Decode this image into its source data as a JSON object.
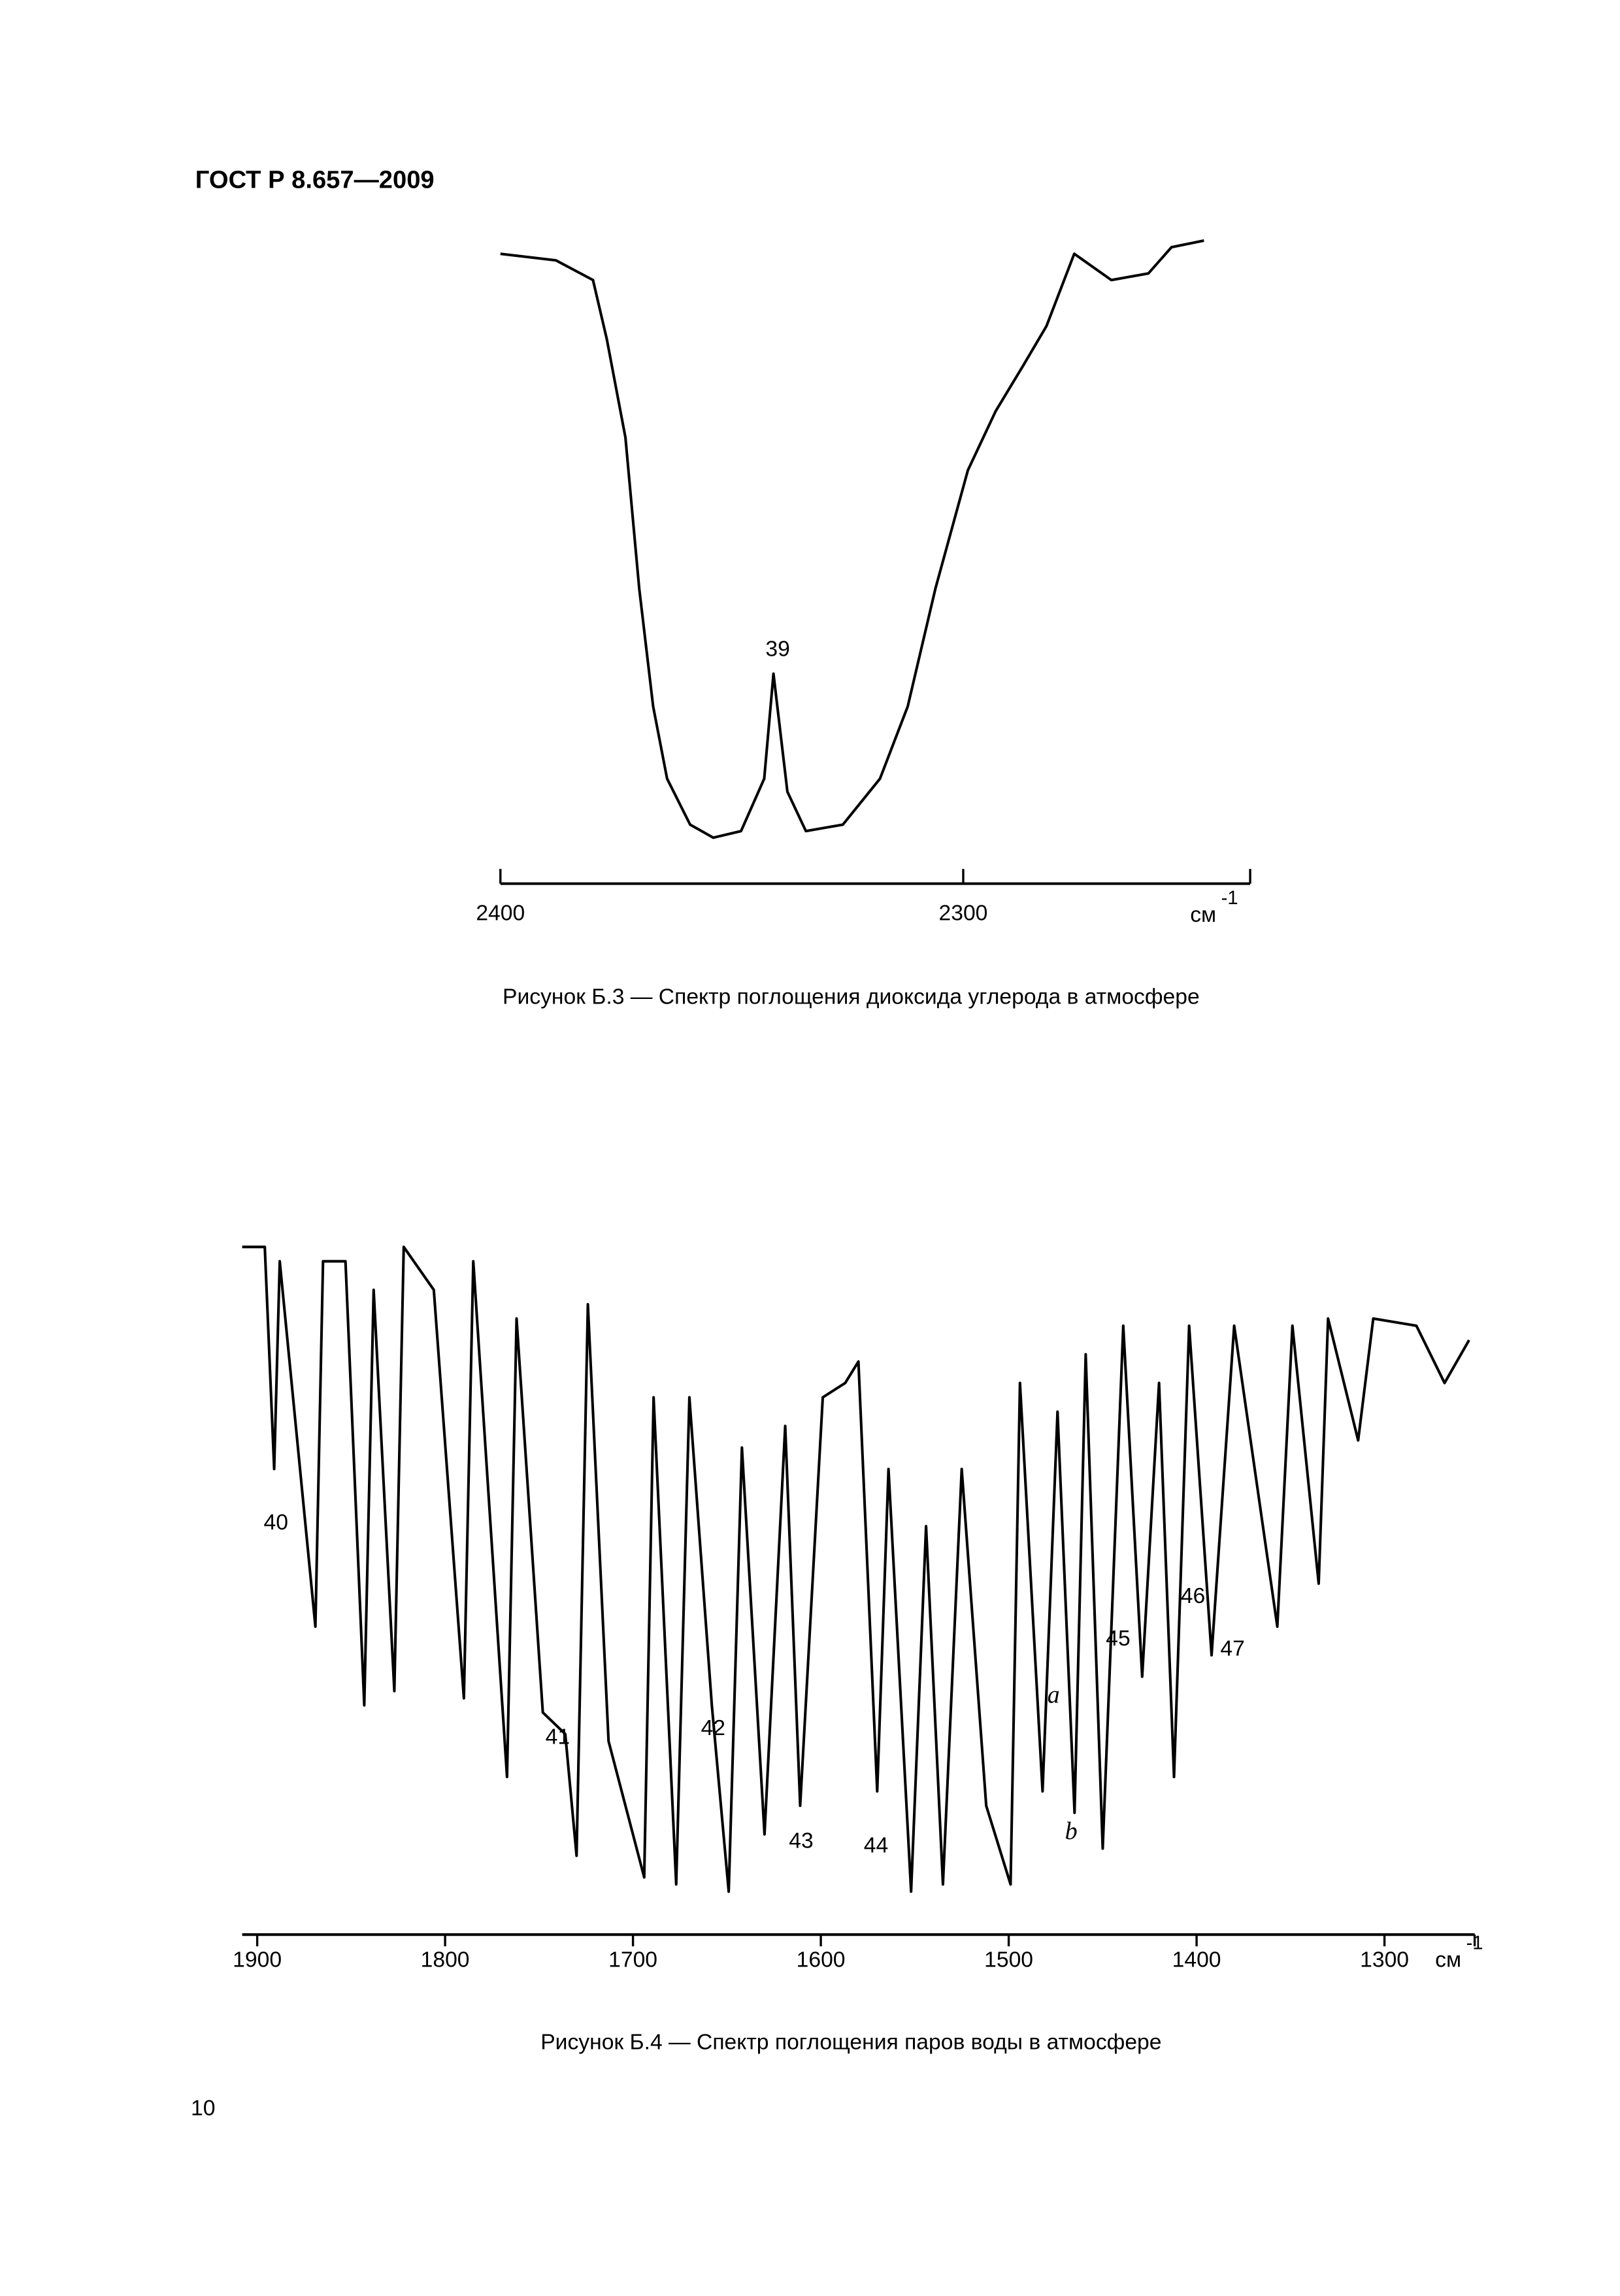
{
  "header": "ГОСТ Р 8.657—2009",
  "page_number": "10",
  "chart_data": [
    {
      "type": "line",
      "caption": "Рисунок Б.3 — Спектр поглощения диоксида углерода в атмосфере",
      "x_unit": "см",
      "x_unit_exponent": "-1",
      "xlim": [
        2400,
        2238
      ],
      "xticks": [
        2400,
        2300
      ],
      "ylim": [
        0,
        100
      ],
      "annotations": [
        {
          "text": "39"
        }
      ],
      "x": [
        2400,
        2388,
        2380,
        2377,
        2373,
        2370,
        2367,
        2364,
        2359,
        2354,
        2348,
        2343,
        2341,
        2338,
        2334,
        2326,
        2318,
        2312,
        2306,
        2299,
        2293,
        2287,
        2282,
        2276,
        2268,
        2260,
        2255,
        2248
      ],
      "values": [
        96,
        95,
        92,
        83,
        68,
        45,
        27,
        16,
        9,
        7,
        8,
        16,
        32,
        14,
        8,
        9,
        16,
        27,
        45,
        63,
        72,
        79,
        85,
        96,
        92,
        93,
        97,
        98
      ],
      "color": "#000000"
    },
    {
      "type": "line",
      "caption": "Рисунок Б.4 — Спектр поглощения паров воды в атмосфере",
      "x_unit": "см",
      "x_unit_exponent": "-1",
      "xlim": [
        1908,
        1252
      ],
      "xticks": [
        1900,
        1800,
        1700,
        1600,
        1500,
        1400,
        1300
      ],
      "ylim": [
        0,
        100
      ],
      "annotations": [
        {
          "text": "40"
        },
        {
          "text": "41"
        },
        {
          "text": "42"
        },
        {
          "text": "43"
        },
        {
          "text": "44"
        },
        {
          "text": "45"
        },
        {
          "text": "46"
        },
        {
          "text": "47"
        },
        {
          "text": "a"
        },
        {
          "text": "b"
        }
      ],
      "x": [
        1908,
        1896,
        1891,
        1888,
        1869,
        1865,
        1853,
        1843,
        1838,
        1827,
        1822,
        1806,
        1790,
        1785,
        1767,
        1762,
        1748,
        1736,
        1730,
        1724,
        1713,
        1694,
        1689,
        1677,
        1670,
        1658,
        1649,
        1642,
        1630,
        1619,
        1611,
        1599,
        1587,
        1580,
        1570,
        1564,
        1552,
        1544,
        1535,
        1525,
        1512,
        1499,
        1494,
        1482,
        1474,
        1465,
        1459,
        1450,
        1439,
        1429,
        1420,
        1412,
        1404,
        1392,
        1380,
        1357,
        1349,
        1335,
        1330,
        1314,
        1306,
        1283,
        1268,
        1255
      ],
      "values": [
        96,
        96,
        65,
        94,
        43,
        94,
        94,
        32,
        90,
        34,
        96,
        90,
        33,
        94,
        22,
        86,
        31,
        28,
        11,
        88,
        27,
        8,
        75,
        7,
        75,
        32,
        6,
        68,
        14,
        71,
        18,
        75,
        77,
        80,
        20,
        65,
        6,
        57,
        7,
        65,
        18,
        7,
        77,
        20,
        73,
        17,
        81,
        12,
        85,
        36,
        77,
        22,
        85,
        39,
        85,
        43,
        85,
        49,
        86,
        69,
        86,
        85,
        77,
        83
      ],
      "color": "#000000"
    }
  ]
}
